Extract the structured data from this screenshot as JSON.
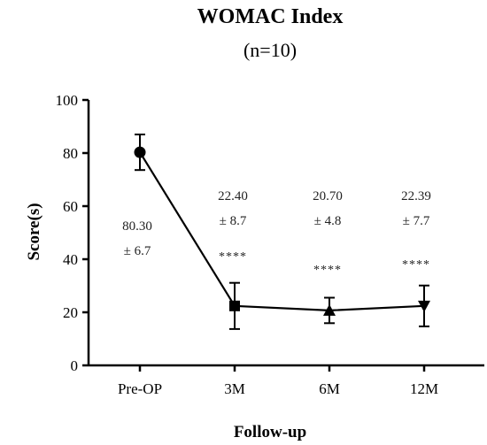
{
  "chart_data": {
    "type": "line",
    "title": "WOMAC Index",
    "subtitle": "(n=10)",
    "xlabel": "Follow-up",
    "ylabel": "Score(s)",
    "ylim": [
      0,
      100
    ],
    "yticks": [
      "0",
      "20",
      "40",
      "60",
      "80",
      "100"
    ],
    "categories": [
      "Pre-OP",
      "3M",
      "6M",
      "12M"
    ],
    "series": [
      {
        "values": [
          80.3,
          22.4,
          20.7,
          22.39
        ],
        "errors": [
          6.7,
          8.7,
          4.8,
          7.7
        ],
        "markers": [
          "circle",
          "square",
          "triangle-up",
          "triangle-down"
        ],
        "color": "#000000"
      }
    ],
    "annotations": [
      {
        "category": "Pre-OP",
        "mean": "80.30",
        "sd": "± 6.7",
        "sig": ""
      },
      {
        "category": "3M",
        "mean": "22.40",
        "sd": "± 8.7",
        "sig": "****"
      },
      {
        "category": "6M",
        "mean": "20.70",
        "sd": "± 4.8",
        "sig": "****"
      },
      {
        "category": "12M",
        "mean": "22.39",
        "sd": "± 7.7",
        "sig": "****"
      }
    ],
    "grid": false,
    "legend": "none"
  }
}
